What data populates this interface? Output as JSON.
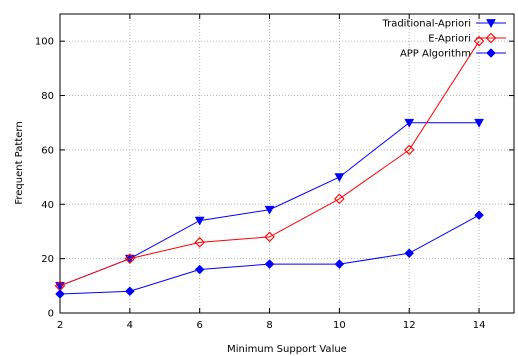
{
  "chart_data": {
    "type": "line",
    "title": "",
    "xlabel": "Minimum Support Value",
    "ylabel": "Frequent Pattern",
    "x": [
      2,
      4,
      6,
      8,
      10,
      12,
      14
    ],
    "xlim": [
      2,
      15
    ],
    "ylim": [
      0,
      110
    ],
    "xticks": [
      2,
      4,
      6,
      8,
      10,
      12,
      14
    ],
    "yticks": [
      0,
      20,
      40,
      60,
      80,
      100
    ],
    "grid": true,
    "legend_position": "top-right",
    "series": [
      {
        "name": "Traditional-Apriori",
        "values": [
          10,
          20,
          34,
          38,
          50,
          70,
          70
        ],
        "color": "#0000ff",
        "marker": "triangle-down-filled"
      },
      {
        "name": "E-Apriori",
        "values": [
          10,
          20,
          26,
          28,
          42,
          60,
          100
        ],
        "color": "#ff0000",
        "marker": "diamond-open"
      },
      {
        "name": "APP Algorithm",
        "values": [
          7,
          8,
          16,
          18,
          18,
          22,
          36
        ],
        "color": "#0000ff",
        "marker": "diamond-filled"
      }
    ]
  }
}
